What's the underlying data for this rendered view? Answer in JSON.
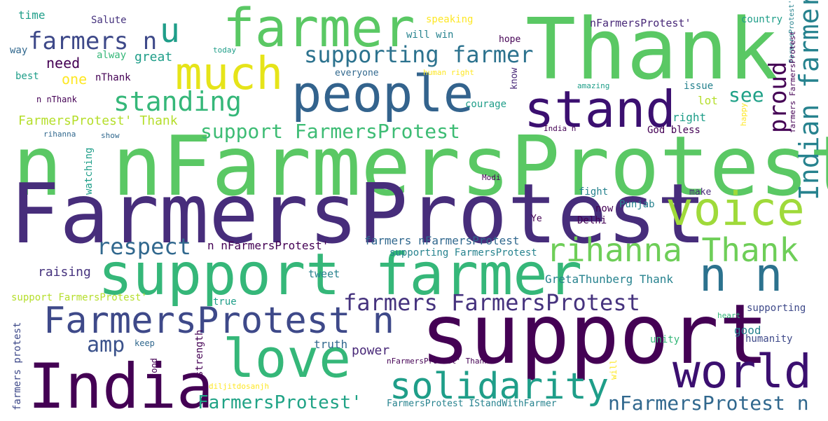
{
  "colors": {
    "background": "#ffffff",
    "palette": [
      "#440154",
      "#482878",
      "#3e4989",
      "#31688e",
      "#26828e",
      "#1f9e89",
      "#35b779",
      "#6ece58",
      "#b5de2b",
      "#fde725"
    ]
  },
  "words": [
    "n nFarmersProtest",
    "FarmersProtest",
    "Thank",
    "support",
    "support farmer",
    "people",
    "farmer",
    "India",
    "much",
    "stand",
    "love",
    "voice",
    "world",
    "rihanna Thank",
    "n n",
    "solidarity",
    "FarmersProtest n",
    "Indian farmer",
    "supporting farmer",
    "farmers n",
    "u",
    "standing",
    "proud",
    "farmers FarmersProtest",
    "respect",
    "support FarmersProtest",
    "amp",
    "nFarmersProtest n",
    "FarmersProtest'",
    "see",
    "FarmersProtest' Thank",
    "nFarmersProtest'",
    "n nFarmersProtest'",
    "need",
    "one",
    "great",
    "time",
    "Salute",
    "way",
    "alway",
    "best",
    "nThank",
    "n nThank",
    "today",
    "everyone",
    "human right",
    "speaking",
    "will win",
    "hope",
    "country",
    "FarmersProtest'",
    "issue",
    "lot",
    "right",
    "amazing",
    "courage",
    "know",
    "happy",
    "farmers FarmersProtest",
    "rihanna",
    "show",
    "India n",
    "God bless",
    "watching",
    "Modi",
    "fight",
    "make",
    "now",
    "Punjab",
    "Delhi",
    "Ye",
    "farmers nFarmersProtest",
    "supporting FarmersProtest",
    "raising",
    "tweet",
    "GretaThunberg Thank",
    "support FarmersProtest'",
    "true",
    "supporting",
    "heart",
    "good",
    "humanity",
    "truth",
    "power",
    "unity",
    "keep",
    "strength",
    "nFarmersProtest' Thank",
    "will",
    "farmers protest",
    "food",
    "diljitdosanjh",
    "FarmersProtest IStandWithFarmer"
  ]
}
